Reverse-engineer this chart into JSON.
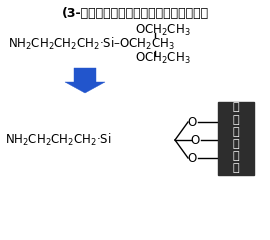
{
  "title": "(3-アミノプロピル）トリエトキシシラン",
  "bg_color": "#ffffff",
  "text_color": "#000000",
  "arrow_color": "#2255cc",
  "stent_box_color": "#2d2d2d",
  "stent_text_color": "#ffffff",
  "figsize": [
    2.7,
    2.4
  ],
  "dpi": 100,
  "title_fontsize": 9.0,
  "formula_fontsize": 8.5,
  "stent_chars": [
    "ス",
    "テ",
    "ン",
    "ト",
    "表",
    "面"
  ]
}
